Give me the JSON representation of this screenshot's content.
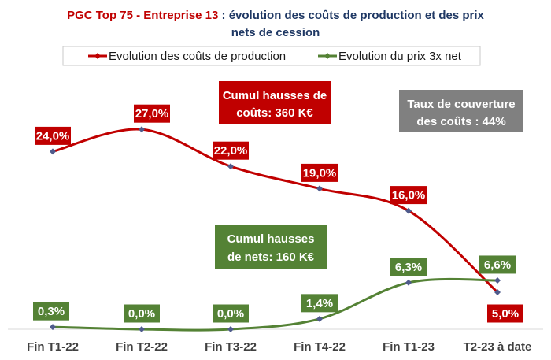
{
  "chart_data": {
    "type": "line",
    "title_highlight": "PGC Top 75 - Entreprise 13",
    "title_rest_line1": " : évolution des coûts de production et des prix",
    "title_line2": "nets de cession",
    "categories": [
      "Fin T1-22",
      "Fin T2-22",
      "Fin T3-22",
      "Fin T4-22",
      "Fin T1-23",
      "T2-23 à date"
    ],
    "ylim": [
      0,
      30
    ],
    "grid": false,
    "legend_position": "top",
    "series": [
      {
        "name": "Evolution des coûts de production",
        "color": "#c00000",
        "values": [
          24.0,
          27.0,
          22.0,
          19.0,
          16.0,
          5.0
        ],
        "labels": [
          "24,0%",
          "27,0%",
          "22,0%",
          "19,0%",
          "16,0%",
          "5,0%"
        ]
      },
      {
        "name": "Evolution du prix 3x net",
        "color": "#548235",
        "values": [
          0.3,
          0.0,
          0.0,
          1.4,
          6.3,
          6.6
        ],
        "labels": [
          "0,3%",
          "0,0%",
          "0,0%",
          "1,4%",
          "6,3%",
          "6,6%"
        ]
      }
    ],
    "marker_color": "#4f5b8c",
    "annotations": [
      {
        "lines": [
          "Cumul hausses de",
          "coûts: 360 K€"
        ],
        "color": "#c00000"
      },
      {
        "lines": [
          "Taux de couverture",
          "des coûts : 44%"
        ],
        "color": "#808080"
      },
      {
        "lines": [
          "Cumul hausses",
          "de nets: 160 K€"
        ],
        "color": "#548235"
      }
    ]
  }
}
